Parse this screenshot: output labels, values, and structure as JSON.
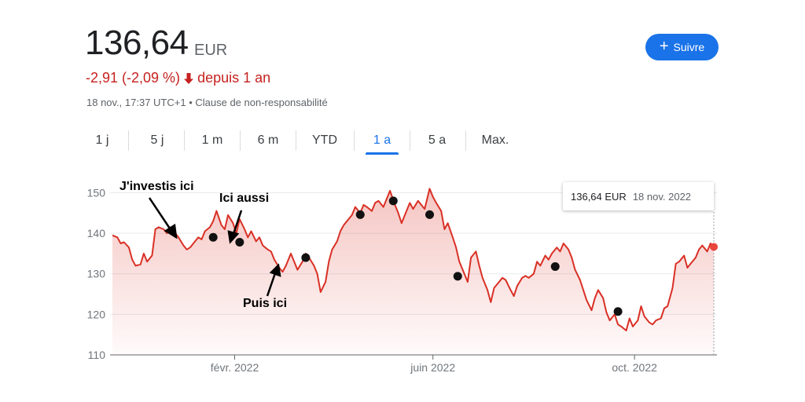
{
  "quote": {
    "price": "136,64",
    "currency": "EUR",
    "change": "-2,91 (-2,09 %)",
    "change_period": "depuis 1 an",
    "timestamp": "18 nov., 17:37 UTC+1 • Clause de non-responsabilité"
  },
  "follow_button": {
    "label": "Suivre",
    "color": "#1a73e8"
  },
  "range_tabs": [
    {
      "label": "1 j"
    },
    {
      "label": "5 j"
    },
    {
      "label": "1 m"
    },
    {
      "label": "6 m"
    },
    {
      "label": "YTD"
    },
    {
      "label": "1 a",
      "selected": true
    },
    {
      "label": "5 a"
    },
    {
      "label": "Max."
    }
  ],
  "tooltip": {
    "value": "136,64 EUR",
    "date": "18 nov. 2022"
  },
  "annotations": {
    "first": "J'investis ici",
    "second": "Ici aussi",
    "third": "Puis ici"
  },
  "colors": {
    "line": "#d93025",
    "negative": "#c5221f",
    "accent": "#1a73e8"
  },
  "chart_data": {
    "type": "area",
    "x_start": "2021-11-19",
    "x_end": "2022-11-18",
    "x_ticks": [
      {
        "date": "2022-02-01",
        "label": "févr. 2022"
      },
      {
        "date": "2022-06-01",
        "label": "juin 2022"
      },
      {
        "date": "2022-10-01",
        "label": "oct. 2022"
      }
    ],
    "ylim": [
      110,
      153
    ],
    "y_ticks": [
      110,
      120,
      130,
      140,
      150
    ],
    "grid": true,
    "series": [
      {
        "points": [
          [
            "2021-11-19",
            139.5
          ],
          [
            "2021-11-22",
            139.0
          ],
          [
            "2021-11-24",
            137.5
          ],
          [
            "2021-11-26",
            137.8
          ],
          [
            "2021-11-29",
            136.5
          ],
          [
            "2021-12-01",
            133.5
          ],
          [
            "2021-12-03",
            132.0
          ],
          [
            "2021-12-06",
            132.3
          ],
          [
            "2021-12-08",
            135.0
          ],
          [
            "2021-12-10",
            133.0
          ],
          [
            "2021-12-13",
            134.5
          ],
          [
            "2021-12-15",
            141.0
          ],
          [
            "2021-12-17",
            141.5
          ],
          [
            "2021-12-20",
            141.0
          ],
          [
            "2021-12-22",
            140.0
          ],
          [
            "2021-12-24",
            141.5
          ],
          [
            "2021-12-27",
            140.0
          ],
          [
            "2021-12-29",
            139.0
          ],
          [
            "2022-01-01",
            137.0
          ],
          [
            "2022-01-03",
            136.0
          ],
          [
            "2022-01-05",
            136.5
          ],
          [
            "2022-01-07",
            137.5
          ],
          [
            "2022-01-10",
            139.0
          ],
          [
            "2022-01-12",
            138.5
          ],
          [
            "2022-01-14",
            140.5
          ],
          [
            "2022-01-17",
            141.5
          ],
          [
            "2022-01-19",
            143.0
          ],
          [
            "2022-01-21",
            145.5
          ],
          [
            "2022-01-24",
            142.0
          ],
          [
            "2022-01-26",
            141.0
          ],
          [
            "2022-01-28",
            144.5
          ],
          [
            "2022-01-31",
            142.5
          ],
          [
            "2022-02-02",
            140.0
          ],
          [
            "2022-02-04",
            143.5
          ],
          [
            "2022-02-07",
            141.0
          ],
          [
            "2022-02-09",
            139.0
          ],
          [
            "2022-02-11",
            140.5
          ],
          [
            "2022-02-14",
            138.0
          ],
          [
            "2022-02-16",
            139.0
          ],
          [
            "2022-02-18",
            137.0
          ],
          [
            "2022-02-21",
            136.0
          ],
          [
            "2022-02-23",
            135.5
          ],
          [
            "2022-02-25",
            133.5
          ],
          [
            "2022-02-28",
            131.5
          ],
          [
            "2022-03-02",
            130.5
          ],
          [
            "2022-03-04",
            132.0
          ],
          [
            "2022-03-07",
            135.0
          ],
          [
            "2022-03-09",
            133.0
          ],
          [
            "2022-03-11",
            131.0
          ],
          [
            "2022-03-14",
            133.0
          ],
          [
            "2022-03-16",
            135.0
          ],
          [
            "2022-03-18",
            134.0
          ],
          [
            "2022-03-21",
            132.0
          ],
          [
            "2022-03-23",
            130.0
          ],
          [
            "2022-03-25",
            125.5
          ],
          [
            "2022-03-28",
            128.0
          ],
          [
            "2022-03-30",
            133.0
          ],
          [
            "2022-04-01",
            136.0
          ],
          [
            "2022-04-04",
            138.0
          ],
          [
            "2022-04-06",
            140.5
          ],
          [
            "2022-04-08",
            142.0
          ],
          [
            "2022-04-11",
            143.5
          ],
          [
            "2022-04-13",
            144.5
          ],
          [
            "2022-04-15",
            146.5
          ],
          [
            "2022-04-18",
            145.0
          ],
          [
            "2022-04-20",
            147.0
          ],
          [
            "2022-04-22",
            146.5
          ],
          [
            "2022-04-25",
            145.5
          ],
          [
            "2022-04-27",
            147.5
          ],
          [
            "2022-04-29",
            148.0
          ],
          [
            "2022-05-02",
            146.5
          ],
          [
            "2022-05-04",
            148.5
          ],
          [
            "2022-05-06",
            150.5
          ],
          [
            "2022-05-09",
            147.0
          ],
          [
            "2022-05-11",
            145.0
          ],
          [
            "2022-05-13",
            142.5
          ],
          [
            "2022-05-16",
            145.5
          ],
          [
            "2022-05-18",
            147.5
          ],
          [
            "2022-05-20",
            146.0
          ],
          [
            "2022-05-23",
            148.0
          ],
          [
            "2022-05-25",
            147.0
          ],
          [
            "2022-05-27",
            146.0
          ],
          [
            "2022-05-30",
            151.0
          ],
          [
            "2022-06-01",
            149.0
          ],
          [
            "2022-06-03",
            147.5
          ],
          [
            "2022-06-06",
            145.5
          ],
          [
            "2022-06-08",
            141.0
          ],
          [
            "2022-06-10",
            142.5
          ],
          [
            "2022-06-13",
            139.0
          ],
          [
            "2022-06-15",
            136.5
          ],
          [
            "2022-06-17",
            133.0
          ],
          [
            "2022-06-20",
            130.0
          ],
          [
            "2022-06-22",
            128.0
          ],
          [
            "2022-06-24",
            134.0
          ],
          [
            "2022-06-27",
            135.5
          ],
          [
            "2022-06-29",
            132.0
          ],
          [
            "2022-07-01",
            129.0
          ],
          [
            "2022-07-04",
            126.0
          ],
          [
            "2022-07-06",
            123.0
          ],
          [
            "2022-07-08",
            126.5
          ],
          [
            "2022-07-11",
            128.0
          ],
          [
            "2022-07-13",
            129.0
          ],
          [
            "2022-07-15",
            128.5
          ],
          [
            "2022-07-18",
            126.0
          ],
          [
            "2022-07-20",
            124.5
          ],
          [
            "2022-07-22",
            127.0
          ],
          [
            "2022-07-25",
            129.0
          ],
          [
            "2022-07-27",
            129.5
          ],
          [
            "2022-07-29",
            129.0
          ],
          [
            "2022-08-01",
            130.0
          ],
          [
            "2022-08-03",
            133.0
          ],
          [
            "2022-08-05",
            132.0
          ],
          [
            "2022-08-08",
            134.5
          ],
          [
            "2022-08-10",
            133.5
          ],
          [
            "2022-08-12",
            135.0
          ],
          [
            "2022-08-15",
            136.5
          ],
          [
            "2022-08-17",
            135.5
          ],
          [
            "2022-08-19",
            137.5
          ],
          [
            "2022-08-22",
            136.0
          ],
          [
            "2022-08-24",
            134.0
          ],
          [
            "2022-08-26",
            131.0
          ],
          [
            "2022-08-29",
            128.5
          ],
          [
            "2022-08-31",
            126.0
          ],
          [
            "2022-09-02",
            123.5
          ],
          [
            "2022-09-05",
            121.0
          ],
          [
            "2022-09-07",
            124.0
          ],
          [
            "2022-09-09",
            126.0
          ],
          [
            "2022-09-12",
            124.0
          ],
          [
            "2022-09-14",
            120.5
          ],
          [
            "2022-09-16",
            118.5
          ],
          [
            "2022-09-19",
            120.0
          ],
          [
            "2022-09-21",
            117.5
          ],
          [
            "2022-09-23",
            117.0
          ],
          [
            "2022-09-26",
            116.0
          ],
          [
            "2022-09-28",
            119.0
          ],
          [
            "2022-09-30",
            117.0
          ],
          [
            "2022-10-03",
            118.5
          ],
          [
            "2022-10-05",
            122.0
          ],
          [
            "2022-10-07",
            119.5
          ],
          [
            "2022-10-10",
            118.0
          ],
          [
            "2022-10-12",
            117.5
          ],
          [
            "2022-10-14",
            118.5
          ],
          [
            "2022-10-17",
            119.0
          ],
          [
            "2022-10-19",
            121.5
          ],
          [
            "2022-10-21",
            122.0
          ],
          [
            "2022-10-24",
            126.5
          ],
          [
            "2022-10-26",
            132.5
          ],
          [
            "2022-10-28",
            133.0
          ],
          [
            "2022-10-31",
            134.5
          ],
          [
            "2022-11-02",
            131.5
          ],
          [
            "2022-11-04",
            132.5
          ],
          [
            "2022-11-07",
            134.0
          ],
          [
            "2022-11-09",
            136.0
          ],
          [
            "2022-11-11",
            137.0
          ],
          [
            "2022-11-14",
            135.5
          ],
          [
            "2022-11-16",
            137.5
          ],
          [
            "2022-11-18",
            136.64
          ]
        ]
      }
    ],
    "markers": [
      {
        "date": "2022-01-19",
        "value": 139.0
      },
      {
        "date": "2022-02-04",
        "value": 137.8
      },
      {
        "date": "2022-03-16",
        "value": 134.0
      },
      {
        "date": "2022-04-18",
        "value": 144.6
      },
      {
        "date": "2022-05-08",
        "value": 148.0
      },
      {
        "date": "2022-05-30",
        "value": 144.6
      },
      {
        "date": "2022-06-16",
        "value": 129.4
      },
      {
        "date": "2022-08-14",
        "value": 131.8
      },
      {
        "date": "2022-09-21",
        "value": 120.7
      }
    ]
  }
}
